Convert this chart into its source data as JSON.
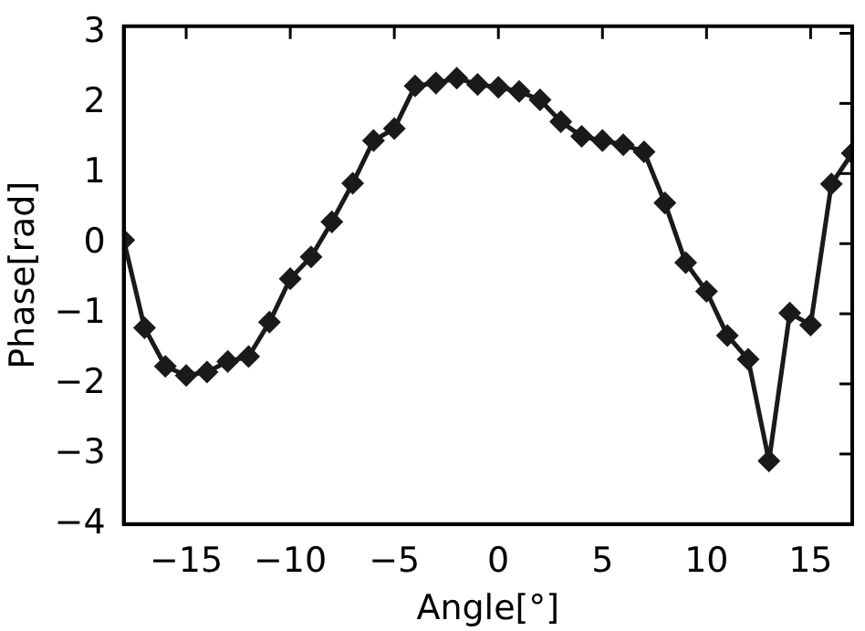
{
  "chart_data": {
    "type": "line",
    "xlabel": "Angle[°]",
    "ylabel": "Phase[rad]",
    "x": [
      -18,
      -17,
      -16,
      -15,
      -14,
      -13,
      -12,
      -11,
      -10,
      -9,
      -8,
      -7,
      -6,
      -5,
      -4,
      -3,
      -2,
      -1,
      0,
      1,
      2,
      3,
      4,
      5,
      6,
      7,
      8,
      9,
      10,
      11,
      12,
      13,
      14,
      15,
      16,
      17
    ],
    "series": [
      {
        "color": "#1a1a1a",
        "values": [
          0.05,
          -1.2,
          -1.75,
          -1.88,
          -1.83,
          -1.68,
          -1.61,
          -1.12,
          -0.5,
          -0.19,
          0.31,
          0.86,
          1.47,
          1.64,
          2.25,
          2.29,
          2.36,
          2.27,
          2.23,
          2.17,
          2.05,
          1.74,
          1.53,
          1.47,
          1.41,
          1.31,
          0.58,
          -0.27,
          -0.68,
          -1.31,
          -1.65,
          -3.1,
          -0.99,
          -1.16,
          0.85,
          1.29
        ]
      }
    ],
    "xlim": [
      -18,
      17
    ],
    "xticks": [
      -15,
      -10,
      -5,
      0,
      5,
      10,
      15
    ],
    "ylim": [
      -4,
      3.1
    ],
    "yticks": [
      -4,
      -3,
      -2,
      -1,
      0,
      1,
      2,
      3
    ],
    "grid": false,
    "legend": false,
    "marker": "diamond",
    "line_style": "solid"
  }
}
